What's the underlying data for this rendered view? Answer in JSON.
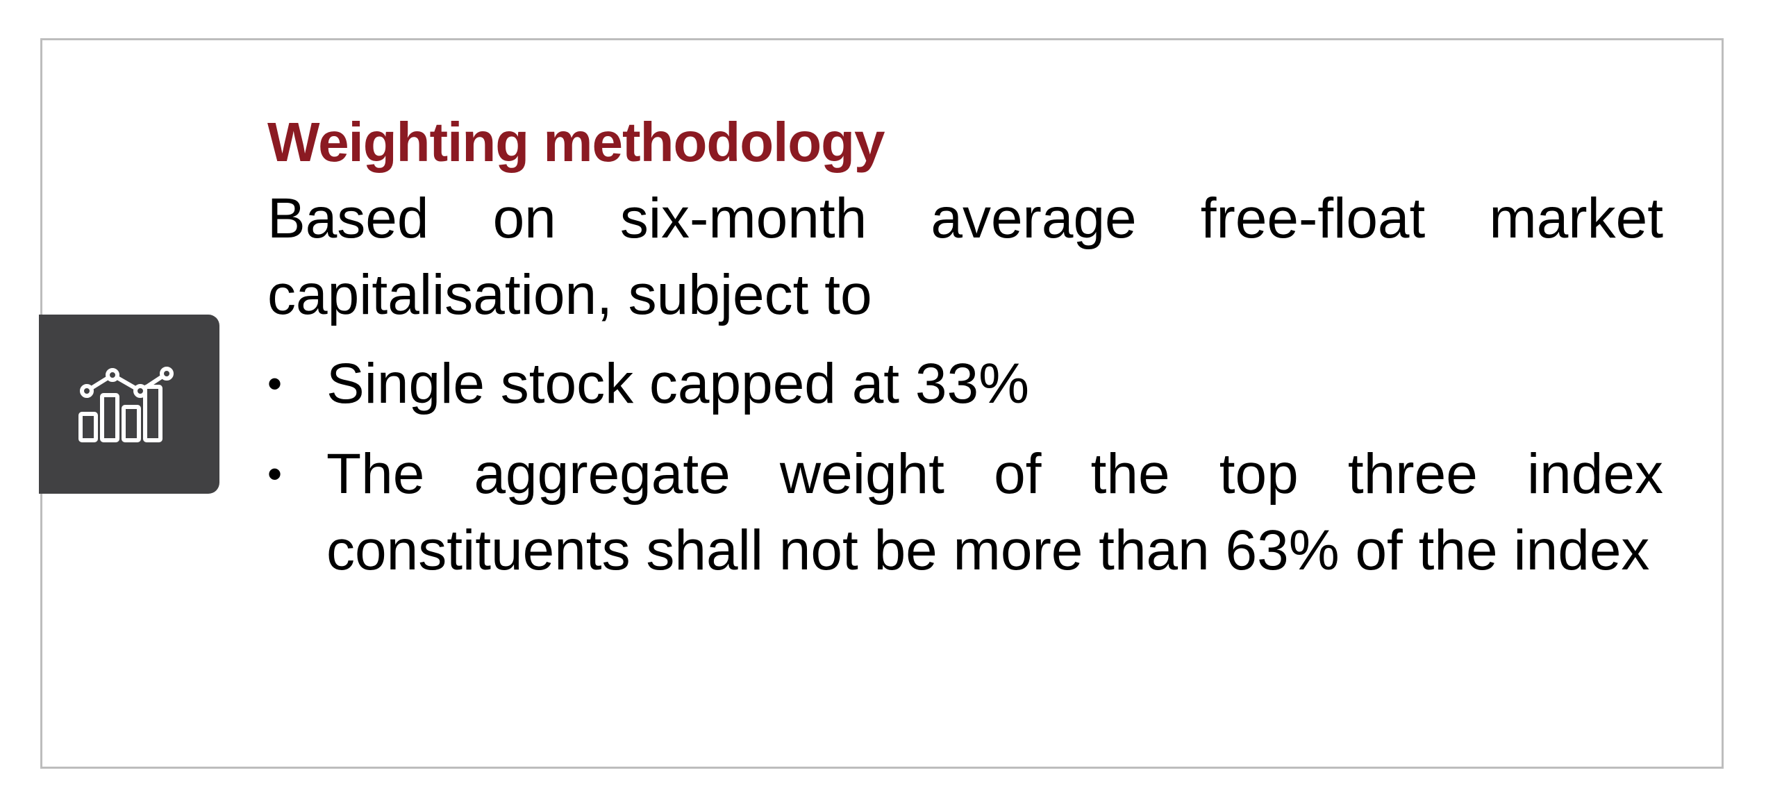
{
  "card": {
    "icon": "bar-line-chart-icon",
    "title": "Weighting methodology",
    "description": "Based on six-month average free-float market capitalisation, subject to",
    "bullets": [
      "Single stock capped at 33%",
      "The aggregate weight of the top three index constituents shall not be more than 63% of the index"
    ],
    "bullet_symbol": "•",
    "colors": {
      "title": "#8b1a22",
      "icon_background": "#414143",
      "border": "#bdbdbd"
    }
  }
}
